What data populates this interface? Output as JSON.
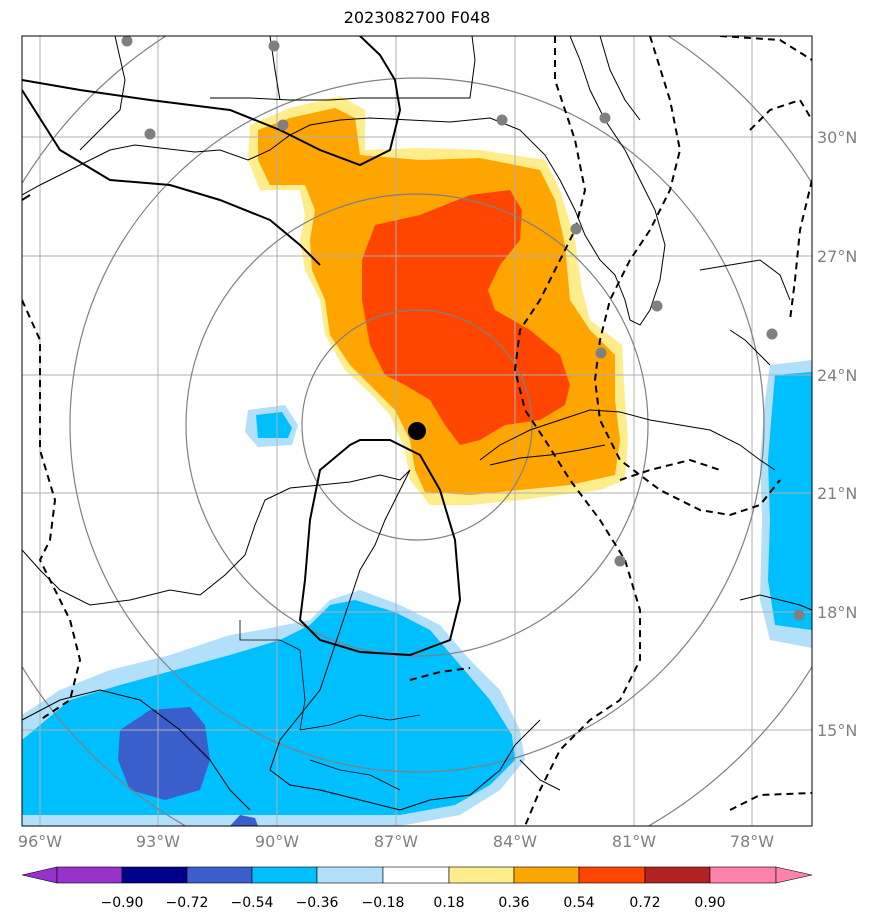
{
  "title": "2023082700 F048",
  "map": {
    "lon_labels": [
      "96°W",
      "93°W",
      "90°W",
      "87°W",
      "84°W",
      "81°W",
      "78°W"
    ],
    "lat_labels": [
      "30°N",
      "27°N",
      "24°N",
      "21°N",
      "18°N",
      "15°N"
    ],
    "gridline_color": "#b0b0b0",
    "range_ring_color": "#808080",
    "center_marker": "storm-center",
    "station_marker_color": "#808080"
  },
  "colorbar": {
    "tick_labels": [
      "−0.90",
      "−0.72",
      "−0.54",
      "−0.36",
      "−0.18",
      "0.18",
      "0.36",
      "0.54",
      "0.72",
      "0.90"
    ],
    "colors": [
      "#9932cc",
      "#00008b",
      "#3a5fcd",
      "#00bfff",
      "#b2e0fb",
      "#ffffff",
      "#ffec8b",
      "#ffa500",
      "#ff4500",
      "#b22222",
      "#ff82ab"
    ]
  }
}
